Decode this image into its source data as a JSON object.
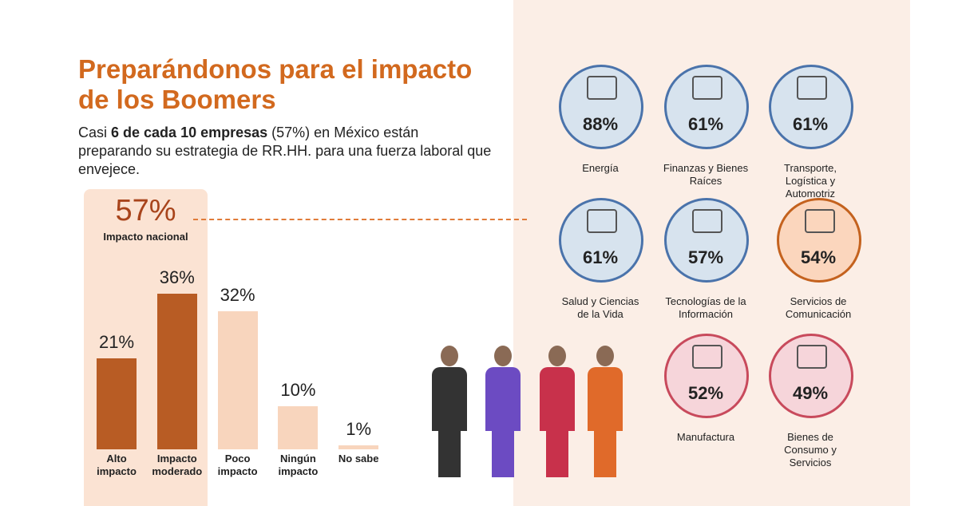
{
  "header": {
    "title": "Preparándonos para el impacto de los Boomers",
    "subtitle": [
      {
        "text": "Casi ",
        "bold": false
      },
      {
        "text": "6 de cada 10 empresas",
        "bold": true
      },
      {
        "text": " (57%) en México están preparando su estrategia de RR.HH. para una fuerza laboral que envejece.",
        "bold": false
      }
    ]
  },
  "national": {
    "value": "57%",
    "caption": "Impacto nacional"
  },
  "chart_data": {
    "type": "bar",
    "categories": [
      "Alto impacto",
      "Impacto moderado",
      "Poco impacto",
      "Ningún impacto",
      "No sabe"
    ],
    "values": [
      21,
      36,
      32,
      10,
      1
    ],
    "value_labels": [
      "21%",
      "36%",
      "32%",
      "10%",
      "1%"
    ],
    "colors": [
      "#b85c24",
      "#b85c24",
      "#f8d5bd",
      "#f8d5bd",
      "#f8d5bd"
    ]
  },
  "sectors": [
    {
      "value": "88%",
      "name": "Energía",
      "theme": "blue"
    },
    {
      "value": "61%",
      "name": "Finanzas y Bienes Raíces",
      "theme": "blue"
    },
    {
      "value": "61%",
      "name": "Transporte, Logística y Automotriz",
      "theme": "blue"
    },
    {
      "value": "61%",
      "name": "Salud y Ciencias de la Vida",
      "theme": "blue"
    },
    {
      "value": "57%",
      "name": "Tecnologías de la Información",
      "theme": "blue"
    },
    {
      "value": "54%",
      "name": "Servicios de Comunicación",
      "theme": "orange"
    },
    {
      "value": "52%",
      "name": "Manufactura",
      "theme": "red"
    },
    {
      "value": "49%",
      "name": "Bienes de Consumo y Servicios",
      "theme": "red"
    }
  ]
}
